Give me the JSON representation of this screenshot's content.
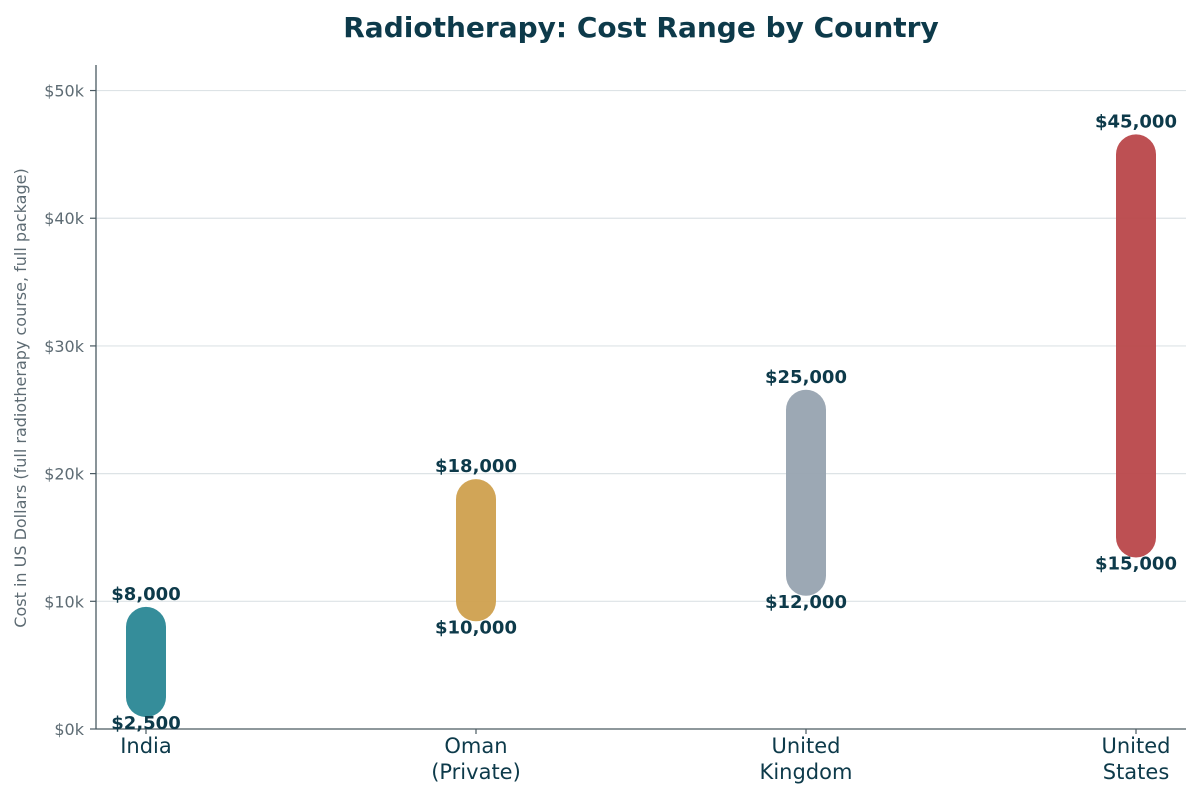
{
  "chart_data": {
    "type": "range-bar",
    "title": "Radiotherapy: Cost Range by Country",
    "ylabel": "Cost in US Dollars (full radiotherapy course, full package)",
    "xlabel": "",
    "ylim": [
      0,
      52000
    ],
    "yticks": [
      0,
      10000,
      20000,
      30000,
      40000,
      50000
    ],
    "ytick_labels": [
      "$0k",
      "$10k",
      "$20k",
      "$30k",
      "$40k",
      "$50k"
    ],
    "grid": true,
    "categories": [
      {
        "label_lines": [
          "India"
        ],
        "low": 2500,
        "high": 8000,
        "low_label": "$2,500",
        "high_label": "$8,000",
        "color": "#2a8795"
      },
      {
        "label_lines": [
          "Oman",
          "(Private)"
        ],
        "low": 10000,
        "high": 18000,
        "low_label": "$10,000",
        "high_label": "$18,000",
        "color": "#cfa04e"
      },
      {
        "label_lines": [
          "United",
          "Kingdom"
        ],
        "low": 12000,
        "high": 25000,
        "low_label": "$12,000",
        "high_label": "$25,000",
        "color": "#97a3b0"
      },
      {
        "label_lines": [
          "United",
          "States"
        ],
        "low": 15000,
        "high": 45000,
        "low_label": "$15,000",
        "high_label": "$45,000",
        "color": "#b9474a"
      }
    ]
  }
}
